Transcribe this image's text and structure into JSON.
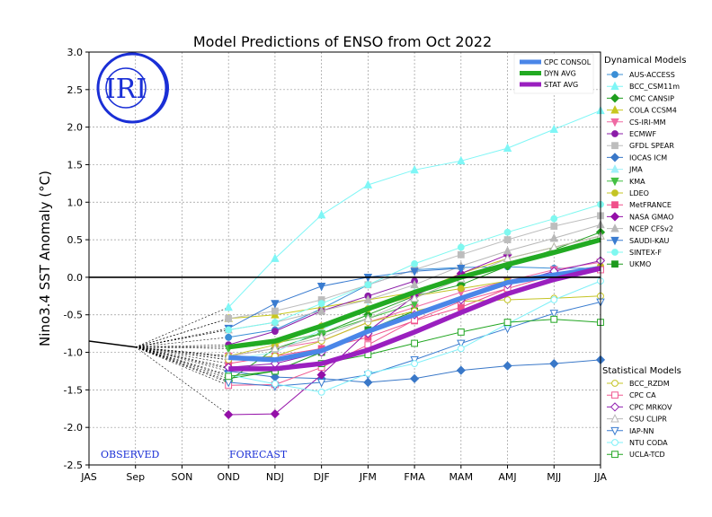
{
  "chart_data": {
    "type": "line",
    "title": "Model Predictions of ENSO from Oct 2022",
    "xlabel": "",
    "ylabel": "Nino3.4 SST Anomaly (°C)",
    "ylim": [
      -2.5,
      3.0
    ],
    "y_ticks": [
      "-2.5",
      "-2.0",
      "-1.5",
      "-1.0",
      "-0.5",
      "0.0",
      "0.5",
      "1.0",
      "1.5",
      "2.0",
      "2.5",
      "3.0"
    ],
    "categories": [
      "JAS",
      "Sep",
      "SON",
      "OND",
      "NDJ",
      "DJF",
      "JFM",
      "FMA",
      "MAM",
      "AMJ",
      "MJJ",
      "JJA"
    ],
    "grid": true,
    "observed_label": "OBSERVED",
    "forecast_label": "FORECAST",
    "logo_text": "IRI",
    "observed": {
      "values": [
        -0.85,
        -0.93,
        null,
        null,
        null,
        null,
        null,
        null,
        null,
        null,
        null,
        null
      ],
      "color": "#000000"
    },
    "dynamical_header": "Dynamical Models",
    "statistical_header": "Statistical Models",
    "consensus": [
      {
        "name": "CPC CONSOL",
        "color": "#4a86e8",
        "values": [
          null,
          null,
          null,
          -1.07,
          -1.1,
          -0.98,
          -0.72,
          -0.5,
          -0.28,
          -0.07,
          0.03,
          0.12
        ]
      },
      {
        "name": "DYN AVG",
        "color": "#22aa22",
        "values": [
          null,
          null,
          null,
          -0.93,
          -0.85,
          -0.65,
          -0.42,
          -0.2,
          0.0,
          0.17,
          0.33,
          0.5
        ]
      },
      {
        "name": "STAT AVG",
        "color": "#9a1fbf",
        "values": [
          null,
          null,
          null,
          -1.22,
          -1.22,
          -1.15,
          -0.97,
          -0.73,
          -0.47,
          -0.22,
          -0.03,
          0.12
        ]
      }
    ],
    "series": [
      {
        "name": "AUS-ACCESS",
        "group": "dyn",
        "marker": "circle",
        "filled": true,
        "color": "#3b8fd6",
        "values": [
          null,
          null,
          null,
          -0.8,
          -0.7,
          -0.42,
          -0.1,
          0.1,
          0.13,
          0.14,
          0.12,
          0.12
        ]
      },
      {
        "name": "BCC_CSM11m",
        "group": "dyn",
        "marker": "triangle-up",
        "filled": true,
        "color": "#7ff6f6",
        "values": [
          null,
          null,
          null,
          -0.4,
          0.25,
          0.83,
          1.23,
          1.43,
          1.55,
          1.72,
          1.97,
          2.22
        ]
      },
      {
        "name": "CMC CANSIP",
        "group": "dyn",
        "marker": "diamond",
        "filled": true,
        "color": "#1e9e1e",
        "values": [
          null,
          null,
          null,
          -1.38,
          -0.95,
          -0.75,
          -0.5,
          -0.25,
          -0.1,
          0.15,
          0.37,
          0.6
        ]
      },
      {
        "name": "COLA CCSM4",
        "group": "dyn",
        "marker": "triangle-up",
        "filled": true,
        "color": "#c8c81e",
        "values": [
          null,
          null,
          null,
          -0.55,
          -0.5,
          -0.4,
          -0.3,
          -0.2,
          0.05,
          0.25,
          0.4,
          0.55
        ]
      },
      {
        "name": "CS-IRI-MM",
        "group": "dyn",
        "marker": "triangle-down",
        "filled": true,
        "color": "#ef6aa3",
        "values": [
          null,
          null,
          null,
          -1.05,
          -0.95,
          -0.85,
          -0.6,
          -0.4,
          -0.2,
          -0.05,
          0.1,
          0.2
        ]
      },
      {
        "name": "ECMWF",
        "group": "dyn",
        "marker": "circle",
        "filled": true,
        "color": "#8b1ca8",
        "values": [
          null,
          null,
          null,
          -0.9,
          -0.72,
          -0.45,
          -0.25,
          -0.05,
          null,
          null,
          null,
          null
        ]
      },
      {
        "name": "GFDL SPEAR",
        "group": "dyn",
        "marker": "square",
        "filled": true,
        "color": "#bdbdbd",
        "values": [
          null,
          null,
          null,
          -0.55,
          -0.45,
          -0.3,
          -0.1,
          0.1,
          0.3,
          0.5,
          0.68,
          0.82
        ]
      },
      {
        "name": "IOCAS ICM",
        "group": "dyn",
        "marker": "diamond",
        "filled": true,
        "color": "#3a78c8",
        "values": [
          null,
          null,
          null,
          -1.25,
          -1.33,
          -1.35,
          -1.4,
          -1.35,
          -1.24,
          -1.18,
          -1.15,
          -1.1
        ]
      },
      {
        "name": "JMA",
        "group": "dyn",
        "marker": "triangle-up",
        "filled": true,
        "color": "#9ff0f8",
        "values": [
          null,
          null,
          null,
          -1.1,
          -1.0,
          -0.7,
          -0.4,
          -0.2,
          null,
          null,
          null,
          null
        ]
      },
      {
        "name": "KMA",
        "group": "dyn",
        "marker": "triangle-down",
        "filled": true,
        "color": "#44c044",
        "values": [
          null,
          null,
          null,
          -0.95,
          -0.88,
          -0.75,
          -0.55,
          -0.35,
          null,
          null,
          null,
          null
        ]
      },
      {
        "name": "LDEO",
        "group": "dyn",
        "marker": "circle",
        "filled": true,
        "color": "#c4c424",
        "values": [
          null,
          null,
          null,
          -1.05,
          -0.9,
          -0.65,
          -0.42,
          -0.25,
          -0.15,
          -0.05,
          0.05,
          0.15
        ]
      },
      {
        "name": "MetFRANCE",
        "group": "dyn",
        "marker": "square",
        "filled": true,
        "color": "#f0508a",
        "values": [
          null,
          null,
          null,
          -1.15,
          -1.05,
          -0.95,
          -0.8,
          -0.58,
          -0.4,
          -0.15,
          null,
          null
        ]
      },
      {
        "name": "NASA GMAO",
        "group": "dyn",
        "marker": "diamond",
        "filled": true,
        "color": "#9410a8",
        "values": [
          null,
          null,
          null,
          -1.83,
          -1.82,
          -1.3,
          -0.72,
          -0.25,
          0.05,
          0.3,
          null,
          null
        ]
      },
      {
        "name": "NCEP CFSv2",
        "group": "dyn",
        "marker": "triangle-up",
        "filled": true,
        "color": "#b8b8b8",
        "values": [
          null,
          null,
          null,
          -0.7,
          -0.6,
          -0.45,
          -0.3,
          -0.1,
          0.15,
          0.35,
          0.52,
          0.7
        ]
      },
      {
        "name": "SAUDI-KAU",
        "group": "dyn",
        "marker": "triangle-down",
        "filled": true,
        "color": "#3a7cd0",
        "values": [
          null,
          null,
          null,
          -0.68,
          -0.35,
          -0.12,
          0.0,
          0.08,
          0.12,
          null,
          null,
          null
        ]
      },
      {
        "name": "SINTEX-F",
        "group": "dyn",
        "marker": "circle",
        "filled": true,
        "color": "#7ff8f0",
        "values": [
          null,
          null,
          null,
          -0.7,
          -0.6,
          -0.35,
          -0.1,
          0.18,
          0.4,
          0.6,
          0.78,
          0.97
        ]
      },
      {
        "name": "UKMO",
        "group": "dyn",
        "marker": "square",
        "filled": true,
        "color": "#1f9a1f",
        "values": [
          null,
          null,
          null,
          -1.35,
          -1.25,
          -1.0,
          -0.7,
          -0.45,
          null,
          null,
          null,
          null
        ]
      },
      {
        "name": "BCC_RZDM",
        "group": "stat",
        "marker": "circle",
        "filled": false,
        "color": "#c4c424",
        "values": [
          null,
          null,
          null,
          -1.1,
          -1.05,
          -0.85,
          -0.6,
          -0.45,
          -0.32,
          -0.3,
          -0.28,
          -0.25
        ]
      },
      {
        "name": "CPC CA",
        "group": "stat",
        "marker": "square",
        "filled": false,
        "color": "#f05890",
        "values": [
          null,
          null,
          null,
          -1.44,
          -1.43,
          -1.2,
          -0.9,
          -0.57,
          -0.32,
          -0.15,
          0.03,
          0.1
        ]
      },
      {
        "name": "CPC MRKOV",
        "group": "stat",
        "marker": "diamond",
        "filled": false,
        "color": "#9020b0",
        "values": [
          null,
          null,
          null,
          -1.2,
          -1.15,
          -1.0,
          -0.75,
          -0.5,
          -0.3,
          -0.1,
          0.08,
          0.22
        ]
      },
      {
        "name": "CSU CLIPR",
        "group": "stat",
        "marker": "triangle-up",
        "filled": false,
        "color": "#b8b8b8",
        "values": [
          null,
          null,
          null,
          -1.05,
          -0.95,
          -0.8,
          -0.55,
          -0.28,
          -0.02,
          0.25,
          0.4,
          0.55
        ]
      },
      {
        "name": "IAP-NN",
        "group": "stat",
        "marker": "triangle-down",
        "filled": false,
        "color": "#3a7cd0",
        "values": [
          null,
          null,
          null,
          -1.4,
          -1.45,
          -1.4,
          -1.3,
          -1.1,
          -0.88,
          -0.68,
          -0.48,
          -0.33
        ]
      },
      {
        "name": "NTU CODA",
        "group": "stat",
        "marker": "circle",
        "filled": false,
        "color": "#7ff0f8",
        "values": [
          null,
          null,
          null,
          -1.3,
          -1.42,
          -1.53,
          -1.28,
          -1.15,
          -0.95,
          -0.62,
          -0.3,
          -0.05
        ]
      },
      {
        "name": "UCLA-TCD",
        "group": "stat",
        "marker": "square",
        "filled": false,
        "color": "#22a622",
        "values": [
          null,
          null,
          null,
          -1.32,
          -1.25,
          -1.15,
          -1.03,
          -0.88,
          -0.73,
          -0.6,
          -0.56,
          -0.6
        ]
      }
    ]
  }
}
